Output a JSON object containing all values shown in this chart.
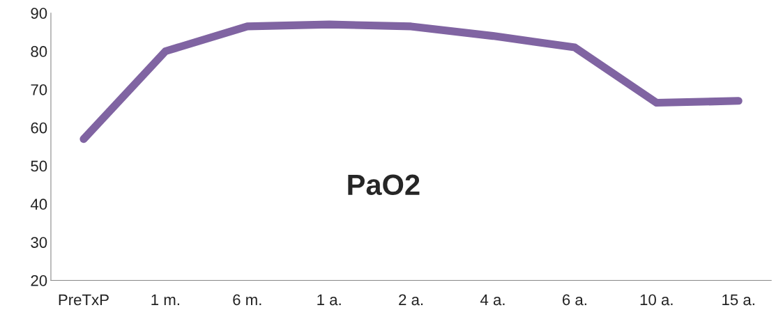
{
  "chart_data": {
    "type": "line",
    "categories": [
      "PreTxP",
      "1 m.",
      "6 m.",
      "1 a.",
      "2 a.",
      "4 a.",
      "6 a.",
      "10 a.",
      "15 a."
    ],
    "series": [
      {
        "color": "#8064a2",
        "values": [
          57,
          80,
          86.5,
          87,
          86.5,
          84,
          81,
          66.5,
          67
        ]
      }
    ],
    "ylim": [
      20,
      90
    ],
    "yticks": [
      20,
      30,
      40,
      50,
      60,
      70,
      80,
      90
    ],
    "annotations": [
      "PaO2"
    ],
    "grid": false,
    "line_style": "solid",
    "marker": "none"
  }
}
